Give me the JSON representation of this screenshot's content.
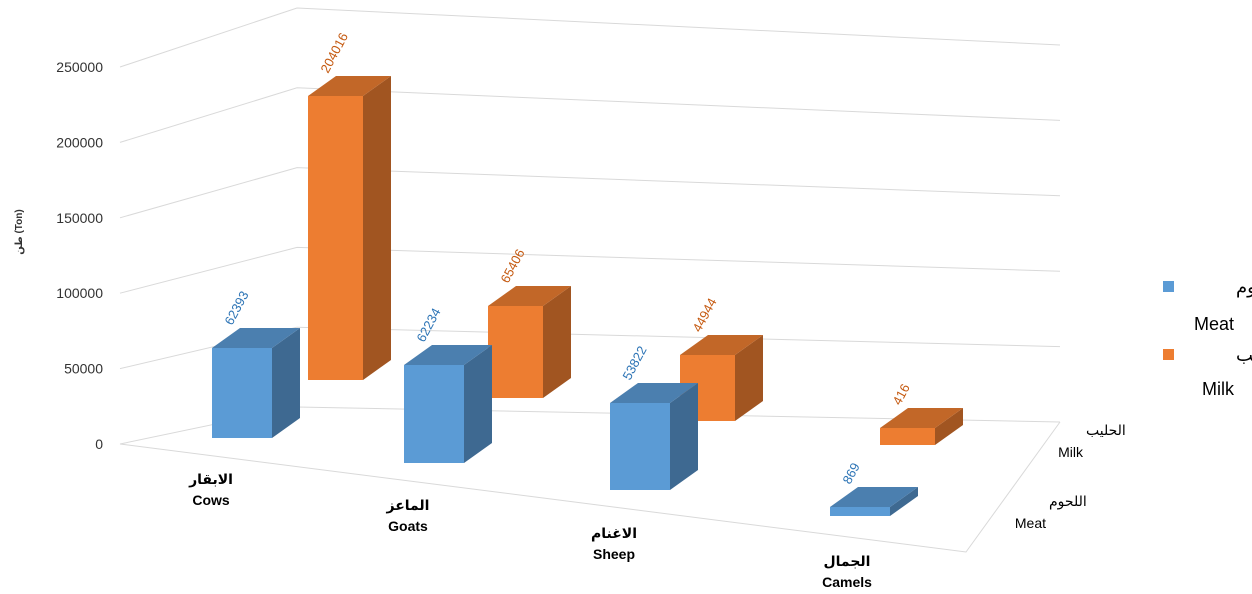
{
  "chart_data": {
    "type": "bar",
    "title": "",
    "ylabel": "طن (Ton)",
    "ylim": [
      0,
      250000
    ],
    "yticks": [
      "0",
      "50000",
      "100000",
      "150000",
      "200000",
      "250000"
    ],
    "categories": [
      {
        "ar": "الابقار",
        "en": "Cows"
      },
      {
        "ar": "الماعز",
        "en": "Goats"
      },
      {
        "ar": "الاغنام",
        "en": "Sheep"
      },
      {
        "ar": "الجمال",
        "en": "Camels"
      }
    ],
    "series": [
      {
        "ar": "اللحوم",
        "en": "Meat",
        "color": "#5B9BD5",
        "values": [
          62393,
          62234,
          53822,
          869
        ]
      },
      {
        "ar": "الحليب",
        "en": "Milk",
        "color": "#ED7D31",
        "values": [
          204016,
          65406,
          44944,
          416
        ]
      }
    ],
    "data_labels": {
      "meat": [
        "62393",
        "62234",
        "53822",
        "869"
      ],
      "milk": [
        "204016",
        "65406",
        "44944",
        "416"
      ]
    },
    "grid": true,
    "legend": "right"
  }
}
